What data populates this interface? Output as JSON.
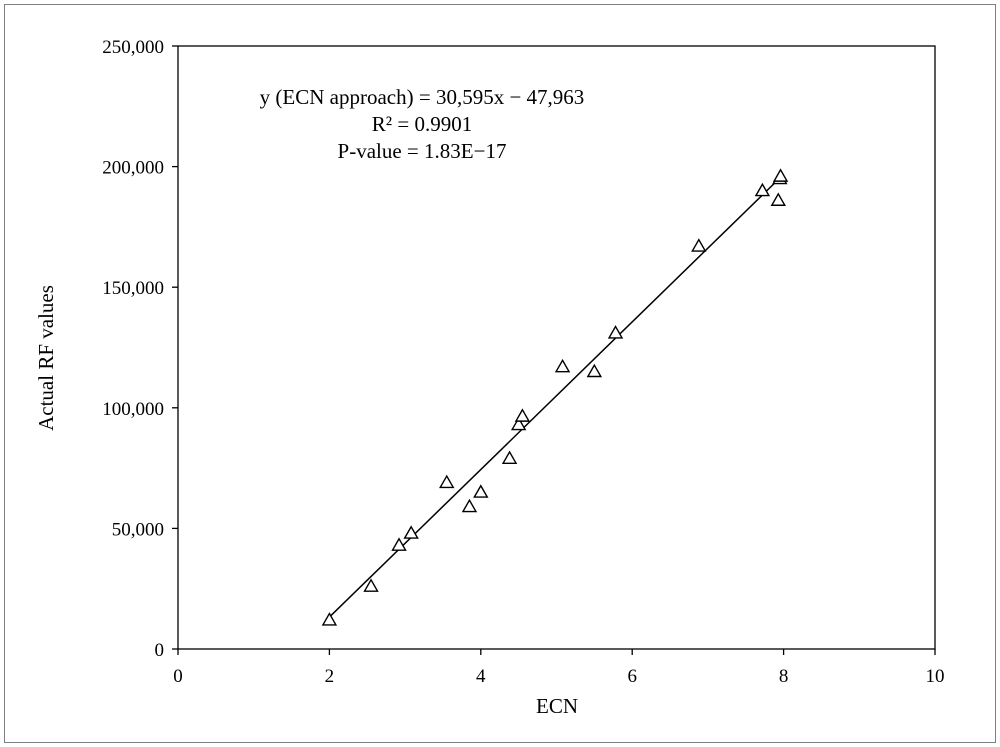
{
  "chart_data": {
    "type": "scatter",
    "xlabel": "ECN",
    "ylabel": "Actual RF values",
    "xlim": [
      0,
      10
    ],
    "ylim": [
      0,
      250000
    ],
    "x_ticks": [
      0,
      2,
      4,
      6,
      8,
      10
    ],
    "y_ticks": [
      0,
      50000,
      100000,
      150000,
      200000,
      250000
    ],
    "x_tick_labels": [
      "0",
      "2",
      "4",
      "6",
      "8",
      "10"
    ],
    "y_tick_labels": [
      "0",
      "50,000",
      "100,000",
      "150,000",
      "200,000",
      "250,000"
    ],
    "grid": false,
    "marker": "open-triangle",
    "points": [
      {
        "x": 2.0,
        "y": 12000
      },
      {
        "x": 2.55,
        "y": 26000
      },
      {
        "x": 2.92,
        "y": 43000
      },
      {
        "x": 3.08,
        "y": 48000
      },
      {
        "x": 3.55,
        "y": 69000
      },
      {
        "x": 3.85,
        "y": 59000
      },
      {
        "x": 4.0,
        "y": 65000
      },
      {
        "x": 4.38,
        "y": 79000
      },
      {
        "x": 4.5,
        "y": 93000
      },
      {
        "x": 4.55,
        "y": 96500
      },
      {
        "x": 5.08,
        "y": 117000
      },
      {
        "x": 5.5,
        "y": 115000
      },
      {
        "x": 5.78,
        "y": 131000
      },
      {
        "x": 6.88,
        "y": 167000
      },
      {
        "x": 7.72,
        "y": 190000
      },
      {
        "x": 7.93,
        "y": 186000
      },
      {
        "x": 7.95,
        "y": 195000
      },
      {
        "x": 7.96,
        "y": 196000
      }
    ],
    "fit_line": {
      "slope": 30595,
      "intercept": -47963,
      "x_range": [
        2.0,
        7.96
      ]
    },
    "annotations": [
      "y (ECN approach) = 30,595x − 47,963",
      "R² = 0.9901",
      "P-value = 1.83E−17"
    ]
  }
}
